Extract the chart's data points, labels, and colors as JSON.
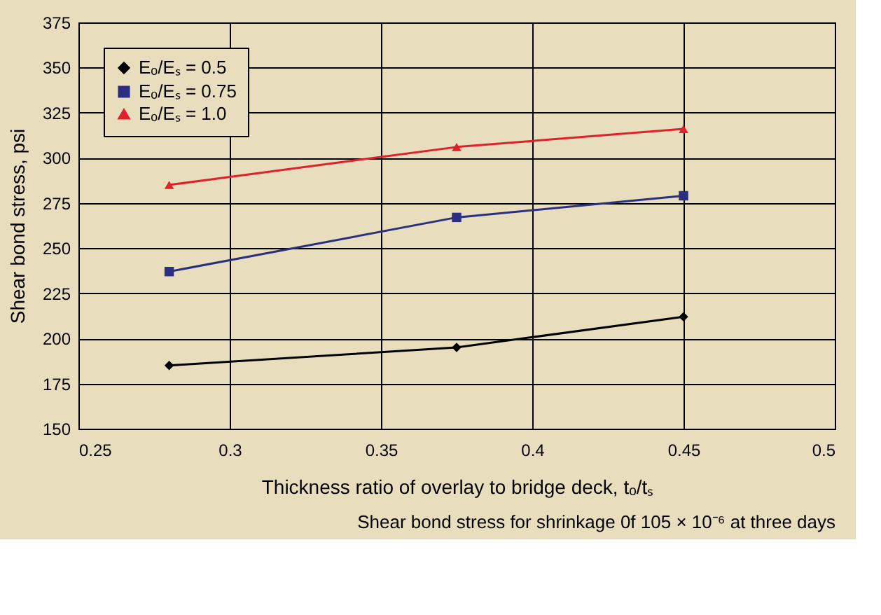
{
  "chart_data": {
    "type": "line",
    "xlabel": "Thickness ratio of overlay to bridge deck, tₒ/tₛ",
    "ylabel": "Shear bond stress, psi",
    "annotations": [
      "Shear bond stress for shrinkage 0f 105 × 10⁻⁶ at three days"
    ],
    "x": [
      0.28,
      0.375,
      0.45
    ],
    "series": [
      {
        "name": "Eₒ/Eₛ = 0.5",
        "color": "#000000",
        "marker": "diamond",
        "values": [
          185,
          195,
          212
        ]
      },
      {
        "name": "Eₒ/Eₛ = 0.75",
        "color": "#2b2f80",
        "marker": "square",
        "values": [
          237,
          267,
          279
        ]
      },
      {
        "name": "Eₒ/Eₛ = 1.0",
        "color": "#e0202a",
        "marker": "triangle",
        "values": [
          285,
          306,
          316
        ]
      }
    ],
    "xlim": [
      0.25,
      0.5
    ],
    "xticks": [
      0.25,
      0.3,
      0.35,
      0.4,
      0.45,
      0.5
    ],
    "ylim": [
      150,
      375
    ],
    "yticks": [
      150,
      175,
      200,
      225,
      250,
      275,
      300,
      325,
      350,
      375
    ],
    "grid": true,
    "legend": "top left",
    "line_style": "solid"
  }
}
